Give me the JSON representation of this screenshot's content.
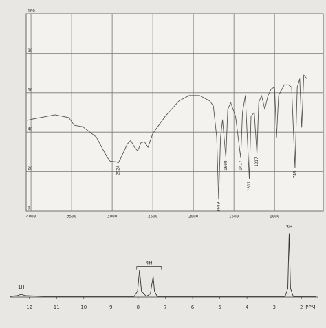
{
  "chart_data": [
    {
      "type": "line",
      "xlim": [
        4060,
        400
      ],
      "ylim": [
        0,
        100
      ],
      "xticks": [
        4000,
        3500,
        3000,
        2500,
        2000,
        1500,
        1000
      ],
      "yticks": [
        0,
        20,
        40,
        60,
        80,
        100
      ],
      "grid": true,
      "color": "#555555",
      "x": [
        4050,
        4000,
        3703,
        3534,
        3466,
        3364,
        3195,
        3068,
        3025,
        2950,
        2924,
        2900,
        2814,
        2771,
        2729,
        2686,
        2644,
        2602,
        2559,
        2500,
        2347,
        2178,
        2051,
        1924,
        1797,
        1754,
        1712,
        1689,
        1665,
        1640,
        1600,
        1576,
        1540,
        1480,
        1417,
        1395,
        1360,
        1311,
        1290,
        1250,
        1217,
        1195,
        1160,
        1120,
        1080,
        1040,
        1000,
        975,
        950,
        880,
        830,
        790,
        748,
        720,
        690,
        665,
        640,
        600
      ],
      "values": [
        46,
        46.5,
        48.8,
        47.4,
        43.5,
        42.8,
        37.5,
        27.7,
        25.3,
        25,
        24.5,
        26.3,
        34,
        35.8,
        32.6,
        30.5,
        34.7,
        35.1,
        32.3,
        39.3,
        48,
        55.8,
        58.6,
        58.6,
        55.8,
        53.3,
        37.5,
        6,
        37.5,
        46.3,
        27,
        51.6,
        55,
        48,
        27,
        50,
        58.6,
        16.5,
        48,
        50,
        28.8,
        55,
        58.6,
        51.6,
        58.6,
        62,
        62.8,
        37.5,
        58.6,
        64,
        64,
        62.8,
        21.8,
        62.8,
        67,
        42.5,
        69,
        67
      ],
      "annotations": [
        {
          "label": "2924",
          "x": 2924,
          "y": 24.5
        },
        {
          "label": "1689",
          "x": 1689,
          "y": 6
        },
        {
          "label": "1600",
          "x": 1600,
          "y": 27
        },
        {
          "label": "1417",
          "x": 1417,
          "y": 27
        },
        {
          "label": "1311",
          "x": 1311,
          "y": 16.5
        },
        {
          "label": "1217",
          "x": 1217,
          "y": 28.8
        },
        {
          "label": "748",
          "x": 748,
          "y": 21.8
        }
      ]
    },
    {
      "type": "line",
      "xlim": [
        12.7,
        1.45
      ],
      "ylim": [
        0,
        100
      ],
      "xticks": [
        12,
        11,
        10,
        9,
        8,
        7,
        6,
        5,
        4,
        3,
        2
      ],
      "x_label": "PPM",
      "color": "#333333",
      "x": [
        12.7,
        12.45,
        12.3,
        12.15,
        11.5,
        8.15,
        8.02,
        7.95,
        7.88,
        7.7,
        7.55,
        7.5,
        7.45,
        7.4,
        7.3,
        2.6,
        2.5,
        2.45,
        2.4,
        2.3,
        1.45
      ],
      "values": [
        0,
        1,
        3,
        1,
        0,
        0,
        8,
        40,
        8,
        0,
        4,
        18,
        30,
        8,
        0,
        0,
        12,
        95,
        12,
        0,
        0
      ],
      "annotations": [
        {
          "label": "1H",
          "x": 12.3,
          "y": 3
        },
        {
          "label": "4H",
          "x": 7.6,
          "y": 40
        },
        {
          "label": "3H",
          "x": 2.45,
          "y": 95
        }
      ]
    }
  ]
}
